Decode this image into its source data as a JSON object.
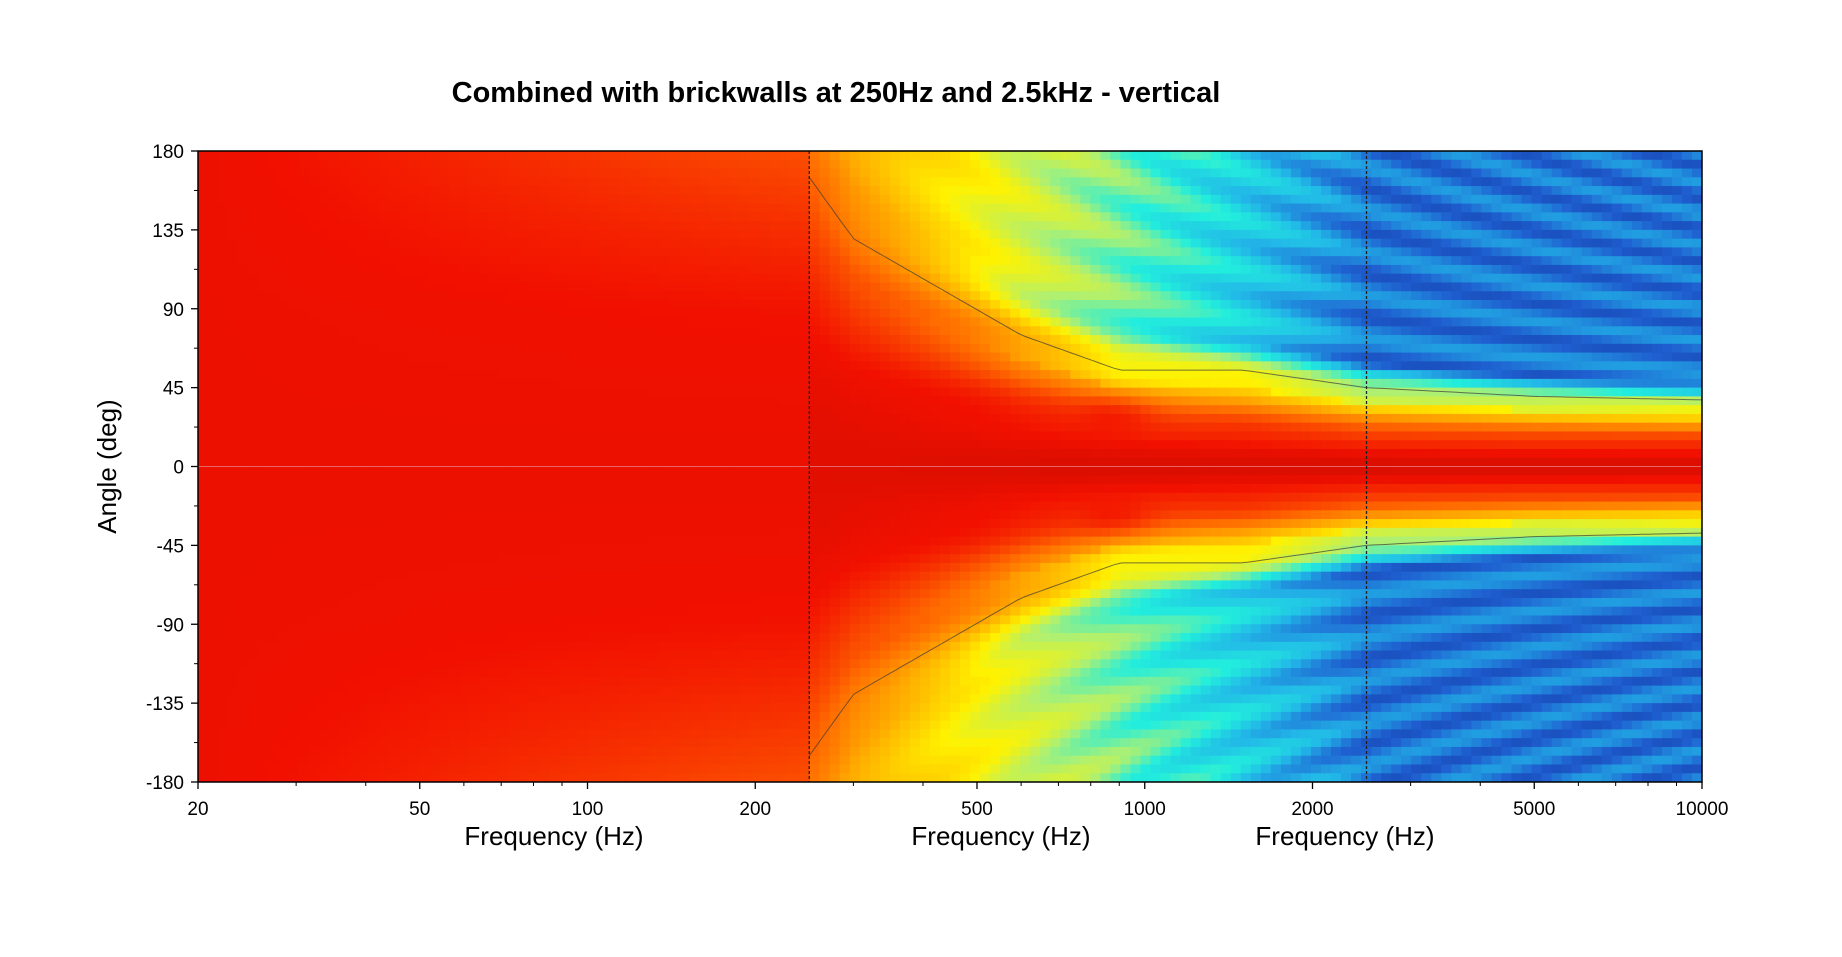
{
  "chart_data": {
    "type": "heatmap",
    "title": "Combined with brickwalls at 250Hz and 2.5kHz - vertical",
    "ylabel": "Angle (deg)",
    "xlabels": [
      "Frequency (Hz)",
      "Frequency (Hz)",
      "Frequency (Hz)"
    ],
    "x_scale": "log",
    "xlim": [
      20,
      10000
    ],
    "ylim": [
      -180,
      180
    ],
    "x_ticks": [
      20,
      50,
      100,
      200,
      500,
      1000,
      2000,
      5000,
      10000
    ],
    "x_tick_labels": [
      "20",
      "50",
      "100",
      "200",
      "500",
      "1000",
      "2000",
      "5000",
      "10000"
    ],
    "y_ticks": [
      180,
      135,
      90,
      45,
      0,
      -45,
      -90,
      -135,
      -180
    ],
    "y_tick_labels": [
      "180",
      "135",
      "90",
      "45",
      "0",
      "-45",
      "-90",
      "-135",
      "-180"
    ],
    "brickwall_freqs": [
      250,
      2500
    ],
    "grid": false,
    "colormap": [
      "#0a1a80",
      "#1f5fd0",
      "#22b7e8",
      "#22eedd",
      "#b0f070",
      "#fff200",
      "#ffb000",
      "#ff6a00",
      "#f21000",
      "#b80c00"
    ],
    "beam_contour": {
      "freqs": [
        20,
        100,
        250,
        300,
        600,
        900,
        1500,
        2500,
        5000,
        10000
      ],
      "half_beam_deg": [
        180,
        175,
        165,
        130,
        75,
        55,
        55,
        45,
        40,
        38
      ]
    }
  }
}
